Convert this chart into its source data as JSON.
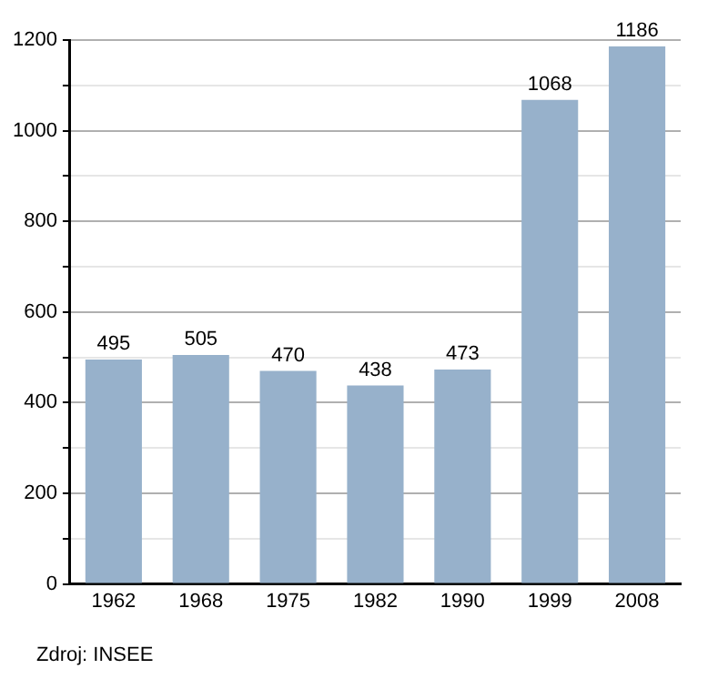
{
  "chart_data": {
    "type": "bar",
    "categories": [
      "1962",
      "1968",
      "1975",
      "1982",
      "1990",
      "1999",
      "2008"
    ],
    "values": [
      495,
      505,
      470,
      438,
      473,
      1068,
      1186
    ],
    "color": "#97b1cb",
    "ylim": [
      0,
      1200
    ],
    "yticks": [
      0,
      {
        "value": 100,
        "label": null
      },
      200,
      {
        "value": 300,
        "label": null
      },
      400,
      {
        "value": 500,
        "label": null
      },
      600,
      {
        "value": 700,
        "label": null
      },
      800,
      {
        "value": 900,
        "label": null
      },
      1000,
      {
        "value": 1100,
        "label": null
      },
      1200
    ],
    "grid": "y",
    "data_labels": true,
    "legend": false,
    "annotations": [
      "Zdroj: INSEE"
    ]
  }
}
